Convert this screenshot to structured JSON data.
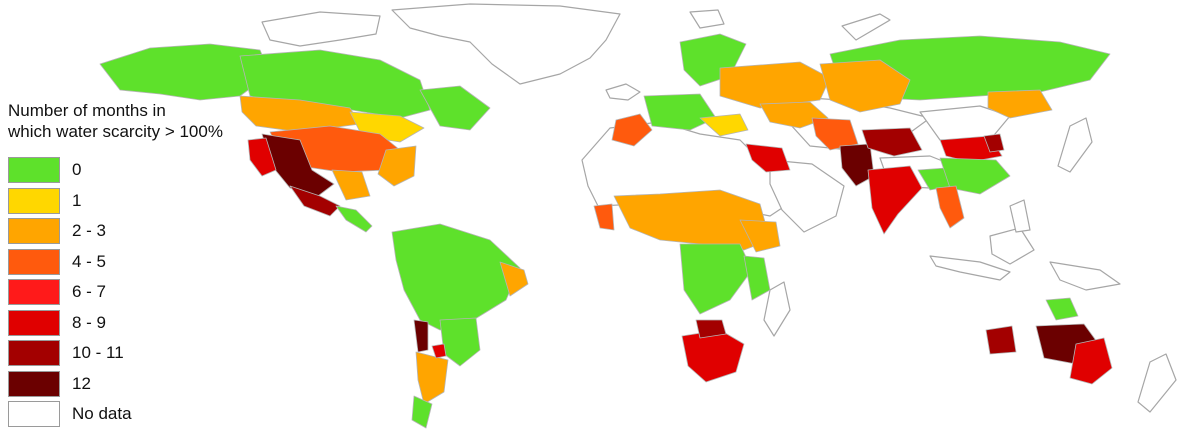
{
  "legend": {
    "title": "Number of months in\nwhich water scarcity > 100%",
    "items": [
      {
        "label": "0",
        "color": "#5ee12b"
      },
      {
        "label": "1",
        "color": "#ffd700"
      },
      {
        "label": "2 - 3",
        "color": "#ffa500"
      },
      {
        "label": "4 - 5",
        "color": "#ff5a0d"
      },
      {
        "label": "6 - 7",
        "color": "#ff1a1a"
      },
      {
        "label": "8 - 9",
        "color": "#e00000"
      },
      {
        "label": "10 - 11",
        "color": "#a30000"
      },
      {
        "label": "12",
        "color": "#6b0000"
      },
      {
        "label": "No data",
        "color": "#ffffff"
      }
    ]
  },
  "map_regions": [
    {
      "region": "alaska-yukon",
      "class": "0"
    },
    {
      "region": "canada-boreal",
      "class": "0"
    },
    {
      "region": "canada-prairies",
      "class": "2 - 3"
    },
    {
      "region": "great-lakes",
      "class": "1"
    },
    {
      "region": "eastern-usa",
      "class": "4 - 5"
    },
    {
      "region": "western-usa",
      "class": "12"
    },
    {
      "region": "mexico",
      "class": "10 - 11"
    },
    {
      "region": "central-america",
      "class": "0"
    },
    {
      "region": "amazon-basin",
      "class": "0"
    },
    {
      "region": "east-brazil",
      "class": "2 - 3"
    },
    {
      "region": "chile-andes",
      "class": "12"
    },
    {
      "region": "argentina",
      "class": "2 - 3"
    },
    {
      "region": "west-europe",
      "class": "4 - 5"
    },
    {
      "region": "central-europe",
      "class": "0"
    },
    {
      "region": "scandinavia",
      "class": "0"
    },
    {
      "region": "russia-west",
      "class": "2 - 3"
    },
    {
      "region": "siberia",
      "class": "0"
    },
    {
      "region": "central-asia",
      "class": "2 - 3"
    },
    {
      "region": "middle-east",
      "class": "8 - 9"
    },
    {
      "region": "sahel",
      "class": "2 - 3"
    },
    {
      "region": "central-africa",
      "class": "0"
    },
    {
      "region": "southern-africa",
      "class": "8 - 9"
    },
    {
      "region": "pakistan",
      "class": "12"
    },
    {
      "region": "india",
      "class": "8 - 9"
    },
    {
      "region": "tibet-china-west",
      "class": "10 - 11"
    },
    {
      "region": "north-china",
      "class": "8 - 9"
    },
    {
      "region": "south-china",
      "class": "0"
    },
    {
      "region": "indochina",
      "class": "4 - 5"
    },
    {
      "region": "australia-interior",
      "class": "12"
    },
    {
      "region": "australia-east",
      "class": "8 - 9"
    }
  ]
}
